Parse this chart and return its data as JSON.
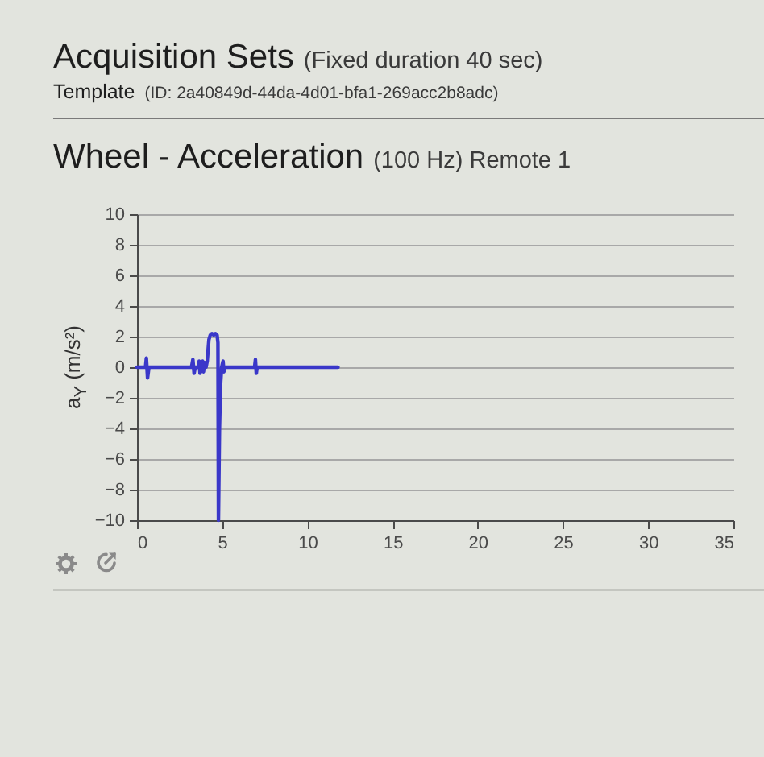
{
  "chart_data": {
    "type": "line",
    "title": "Wheel - Acceleration",
    "subtitle": "(100 Hz) Remote 1",
    "annotations": [
      "Acquisition Sets",
      "(Fixed duration 40 sec)",
      "Template",
      "(ID: 2a40849d-44da-4d01-bfa1-269acc2b8adc)"
    ],
    "ylabel": "a$_{Y}$ (m/s²)",
    "x": [
      0,
      0.5,
      0.55,
      0.62,
      0.7,
      3.2,
      3.28,
      3.35,
      3.42,
      3.6,
      3.65,
      3.7,
      3.75,
      3.85,
      3.9,
      3.97,
      4.05,
      4.12,
      4.22,
      4.3,
      4.4,
      4.5,
      4.6,
      4.7,
      4.75,
      4.78,
      4.84,
      4.9,
      4.97,
      5.05,
      5.1,
      5.15,
      6.9,
      6.95,
      7.0,
      7.05,
      11.8
    ],
    "values": [
      0,
      0,
      0.6,
      -0.7,
      0,
      0,
      0.5,
      -0.4,
      0,
      0,
      0.4,
      -0.4,
      0,
      0.4,
      -0.3,
      0.3,
      0,
      0.4,
      1.8,
      2.1,
      2.2,
      2.1,
      2.2,
      2.1,
      1.6,
      -10,
      -4,
      -1.2,
      0,
      0.4,
      -0.3,
      0,
      0,
      0.5,
      -0.4,
      0,
      0
    ],
    "color": "#3a37c9",
    "xlim": [
      0,
      35
    ],
    "xticks": [
      0,
      5,
      10,
      15,
      20,
      25,
      30,
      35
    ],
    "ylim": [
      -10,
      10
    ],
    "yticks": [
      -10,
      -8,
      -6,
      -4,
      -2,
      0,
      2,
      4,
      6,
      8,
      10
    ],
    "grid": "y",
    "marker": "none",
    "line_style": "solid"
  }
}
